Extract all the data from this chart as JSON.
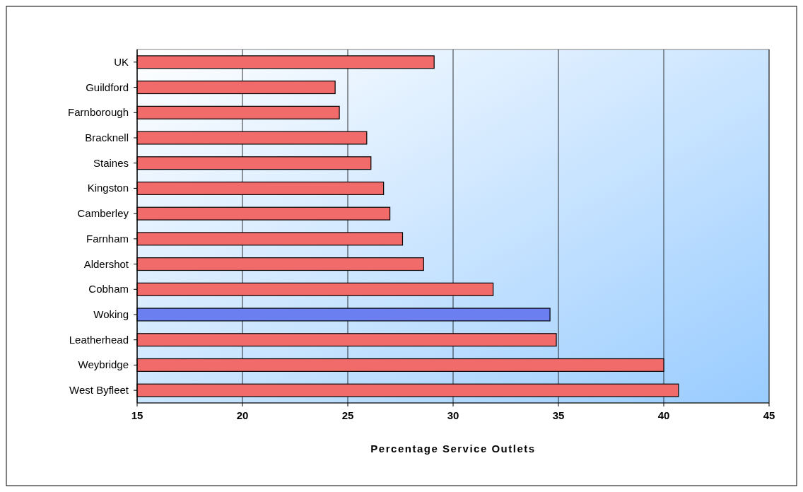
{
  "chart_data": {
    "type": "bar",
    "orientation": "horizontal",
    "xlabel": "Percentage Service Outlets",
    "categories": [
      "UK",
      "Guildford",
      "Farnborough",
      "Bracknell",
      "Staines",
      "Kingston",
      "Camberley",
      "Farnham",
      "Aldershot",
      "Cobham",
      "Woking",
      "Leatherhead",
      "Weybridge",
      "West Byfleet"
    ],
    "values": [
      29.1,
      24.4,
      24.6,
      25.9,
      26.1,
      26.7,
      27.0,
      27.6,
      28.6,
      31.9,
      34.6,
      34.9,
      40.0,
      40.7
    ],
    "colors": [
      "#f26b6b",
      "#f26b6b",
      "#f26b6b",
      "#f26b6b",
      "#f26b6b",
      "#f26b6b",
      "#f26b6b",
      "#f26b6b",
      "#f26b6b",
      "#f26b6b",
      "#6b7ff0",
      "#f26b6b",
      "#f26b6b",
      "#f26b6b"
    ],
    "xlim": [
      15,
      45
    ],
    "xticks": [
      15,
      20,
      25,
      30,
      35,
      40,
      45
    ],
    "grid": "x"
  }
}
